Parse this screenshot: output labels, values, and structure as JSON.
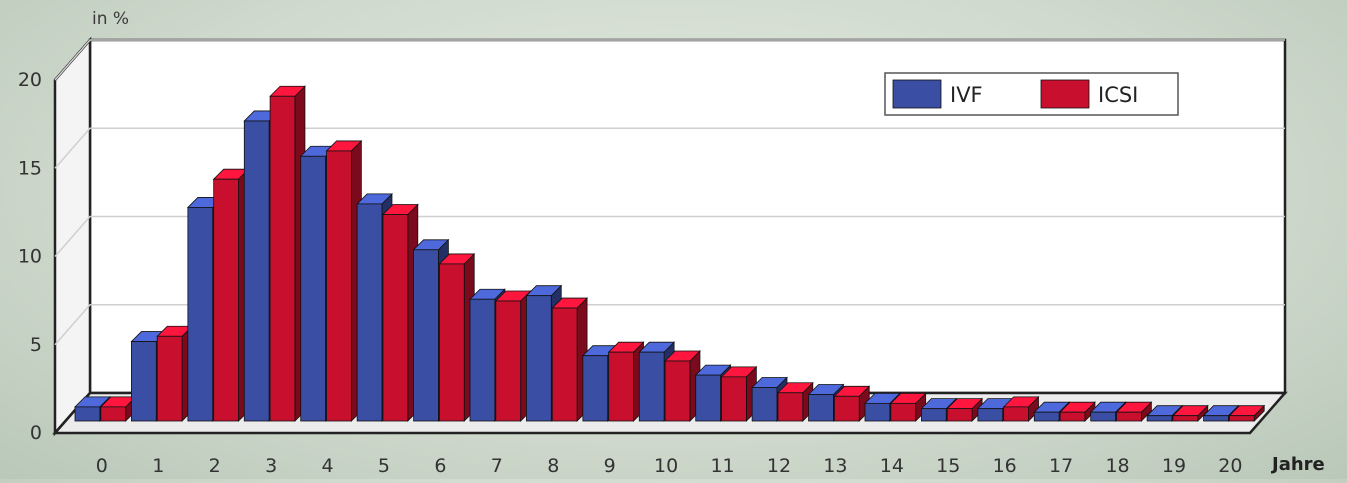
{
  "chart_data": {
    "type": "bar",
    "unit_label": "in %",
    "xlabel": "Jahre",
    "ylabel": "in %",
    "ylim": [
      0,
      20
    ],
    "yticks": [
      0,
      5,
      10,
      15,
      20
    ],
    "grid": true,
    "legend_position": "top-right",
    "categories": [
      "0",
      "1",
      "2",
      "3",
      "4",
      "5",
      "6",
      "7",
      "8",
      "9",
      "10",
      "11",
      "12",
      "13",
      "14",
      "15",
      "16",
      "17",
      "18",
      "19",
      "20"
    ],
    "series": [
      {
        "name": "IVF",
        "color": "#3a4ea3",
        "values": [
          0.8,
          4.5,
          12.1,
          17.0,
          15.0,
          12.3,
          9.7,
          6.9,
          7.1,
          3.7,
          3.9,
          2.6,
          1.9,
          1.5,
          1.0,
          0.7,
          0.7,
          0.5,
          0.5,
          0.3,
          0.3
        ]
      },
      {
        "name": "ICSI",
        "color": "#c8102e",
        "values": [
          0.8,
          4.8,
          13.7,
          18.4,
          15.3,
          11.7,
          8.9,
          6.8,
          6.4,
          3.9,
          3.4,
          2.5,
          1.6,
          1.4,
          1.0,
          0.7,
          0.8,
          0.5,
          0.5,
          0.3,
          0.3
        ]
      }
    ]
  }
}
